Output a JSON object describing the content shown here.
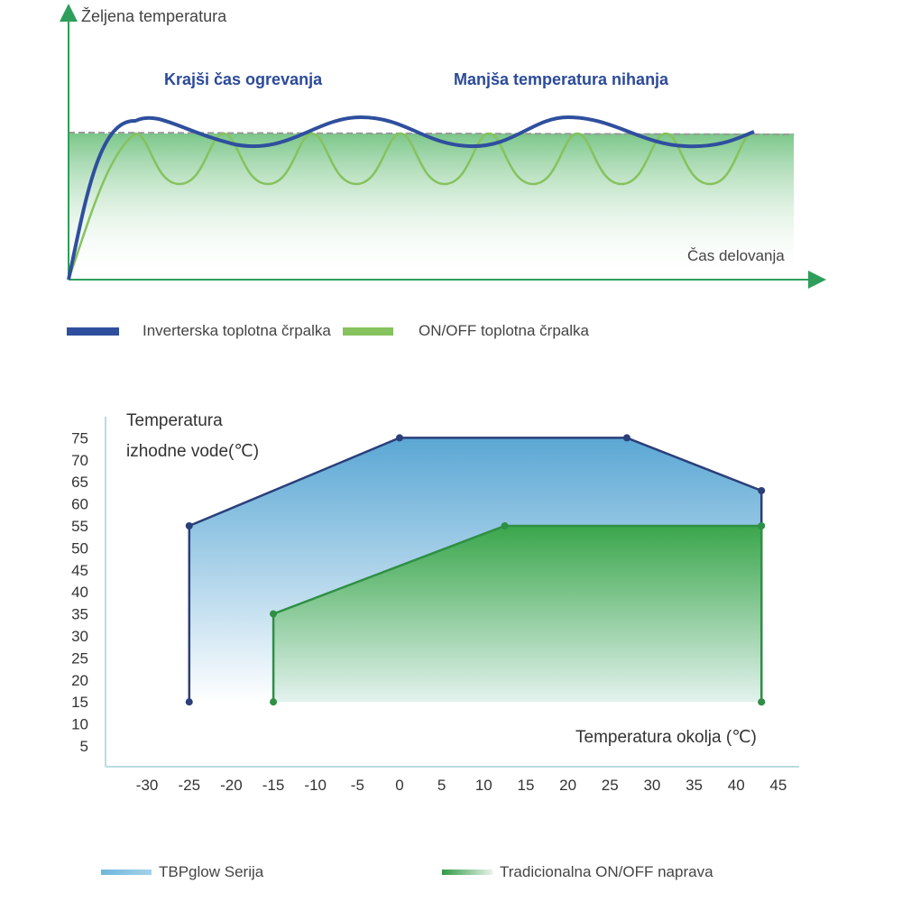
{
  "top_chart": {
    "ylabel": "Željena temperatura",
    "xlabel": "Čas delovanja",
    "annotation_left": "Krajši čas ogrevanja",
    "annotation_right": "Manjša temperatura nihanja",
    "legend": [
      {
        "label": "Inverterska toplotna črpalka",
        "color": "#2f4f9e"
      },
      {
        "label": "ON/OFF toplotna črpalka",
        "color": "#7dbb5a"
      }
    ]
  },
  "chart_data": {
    "type": "area",
    "ylabel_line1": "Temperatura",
    "ylabel_line2": "izhodne vode(℃)",
    "xlabel": "Temperatura okolja (℃)",
    "x_ticks": [
      -30,
      -25,
      -20,
      -15,
      -10,
      -5,
      0,
      5,
      10,
      15,
      20,
      25,
      30,
      35,
      40,
      45
    ],
    "y_ticks": [
      5,
      10,
      15,
      20,
      25,
      30,
      35,
      40,
      45,
      50,
      55,
      60,
      65,
      70,
      75
    ],
    "xlim": [
      -30,
      45
    ],
    "ylim": [
      5,
      75
    ],
    "series": [
      {
        "name": "TBPglow Serija",
        "color": "#2b3f7a",
        "fill_top": "#6aaed6",
        "points": [
          [
            -25,
            15
          ],
          [
            -25,
            55
          ],
          [
            0,
            75
          ],
          [
            27,
            75
          ],
          [
            43,
            63
          ],
          [
            43,
            15
          ]
        ]
      },
      {
        "name": "Tradicionalna ON/OFF naprava",
        "color": "#2f8f45",
        "fill_top": "#3faa4a",
        "points": [
          [
            -15,
            15
          ],
          [
            -15,
            35
          ],
          [
            12.5,
            55
          ],
          [
            43,
            55
          ],
          [
            43,
            15
          ]
        ]
      }
    ]
  },
  "bottom_legend": [
    {
      "label": "TBPglow Serija",
      "color": "#6fb6dc"
    },
    {
      "label": "Tradicionalna ON/OFF naprava",
      "color": "#3faa4a"
    }
  ]
}
